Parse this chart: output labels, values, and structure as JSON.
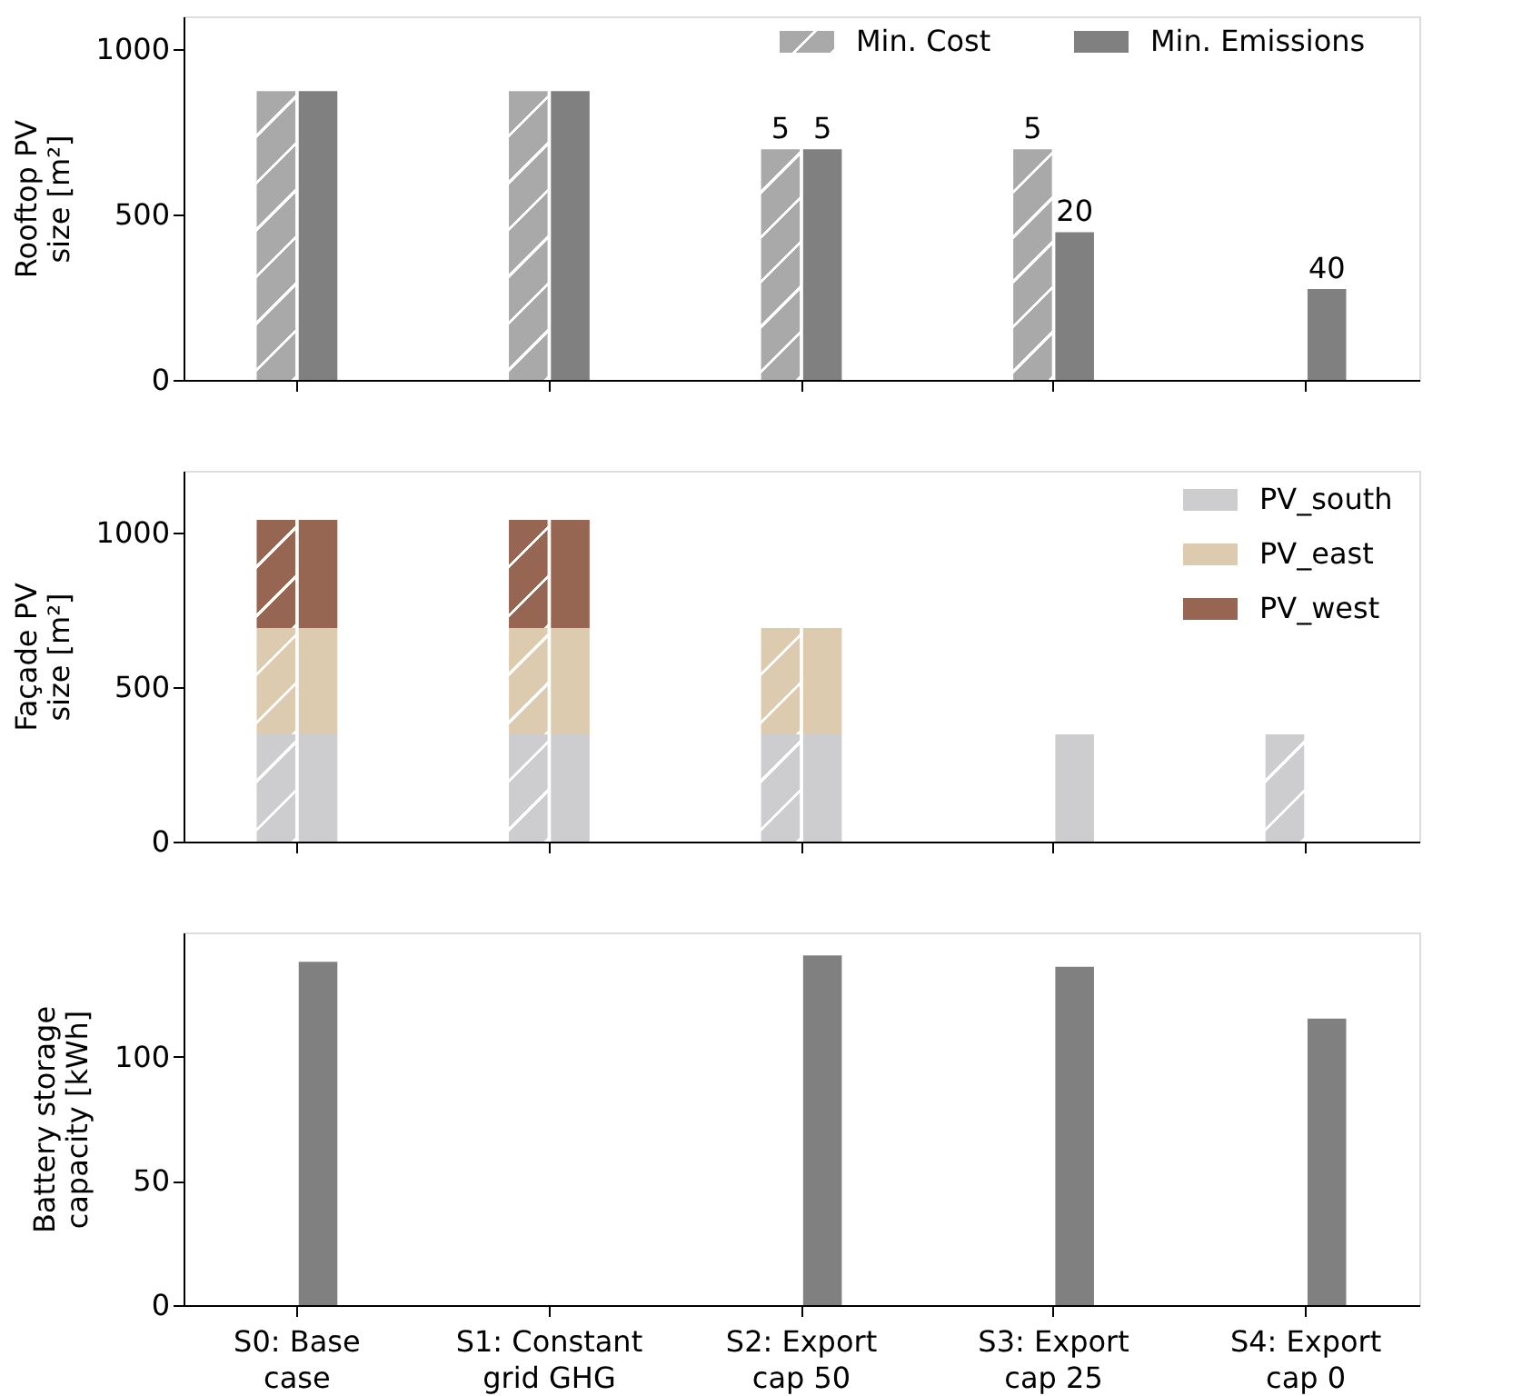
{
  "chart_data": [
    {
      "type": "bar",
      "ylabel": "Rooftop PV size [m²]",
      "categories": [
        "S0: Base case",
        "S1: Constant grid GHG",
        "S2: Export cap 50",
        "S3: Export cap 25",
        "S4: Export cap 0"
      ],
      "ylim": [
        0,
        1100
      ],
      "yticks": [
        0,
        500,
        1000
      ],
      "legend": "top right",
      "tick_labels": "y",
      "series": [
        {
          "name": "Min. Cost",
          "color": "#a9a9a9",
          "values": [
            874,
            874,
            698,
            698,
            null
          ]
        },
        {
          "name": "Min. Emissions",
          "color": "#808080",
          "values": [
            874,
            874,
            698,
            447,
            275
          ]
        }
      ],
      "annotations": [
        {
          "text": "5",
          "x": "S2: Export cap 50",
          "y": 698
        },
        {
          "text": "5",
          "x": "S2: Export cap 50",
          "y": 698
        },
        {
          "text": "5",
          "x": "S3: Export cap 25",
          "y": 698
        },
        {
          "text": "20",
          "x": "S3: Export cap 25",
          "y": 447
        },
        {
          "text": "40",
          "x": "S4: Export cap 0",
          "y": 275
        }
      ]
    },
    {
      "type": "bar",
      "ylabel": "Façade PV size [m²]",
      "categories": [
        "S0: Base case",
        "S1: Constant grid GHG",
        "S2: Export cap 50",
        "S3: Export cap 25",
        "S4: Export cap 0"
      ],
      "ylim": [
        0,
        1200
      ],
      "yticks": [
        0,
        500,
        1000
      ],
      "legend": "top right",
      "tick_labels": "y",
      "series": [
        {
          "name": "PV_south",
          "color": "#cdcdcf",
          "values": [
            347,
            347,
            347,
            null,
            347
          ],
          "base": [
            0,
            0,
            0,
            null,
            0
          ]
        },
        {
          "name": "PV_east",
          "color": "#dccbaf",
          "values": [
            344,
            344,
            344,
            null,
            null
          ],
          "base": [
            347,
            347,
            347,
            null,
            null
          ]
        },
        {
          "name": "PV_west",
          "color": "#976653",
          "values": [
            350,
            350,
            null,
            null,
            null
          ],
          "base": [
            691,
            691,
            null,
            null,
            null
          ]
        },
        {
          "color": "#cdcdcf",
          "values": [
            347,
            347,
            347,
            347,
            null
          ],
          "base": [
            0,
            0,
            0,
            0,
            null
          ]
        },
        {
          "color": "#dccbaf",
          "values": [
            344,
            344,
            344,
            null,
            null
          ],
          "base": [
            347,
            347,
            347,
            null,
            null
          ]
        },
        {
          "color": "#976653",
          "values": [
            350,
            350,
            null,
            null,
            null
          ],
          "base": [
            691,
            691,
            null,
            null,
            null
          ]
        }
      ]
    },
    {
      "type": "bar",
      "ylabel": "Battery storage capacity [kWh]",
      "categories": [
        "S0: Base case",
        "S1: Constant grid GHG",
        "S2: Export cap 50",
        "S3: Export cap 25",
        "S4: Export cap 0"
      ],
      "ylim": [
        0,
        150
      ],
      "yticks": [
        0,
        50,
        100
      ],
      "series": [
        {
          "color": "#a9a9a9",
          "values": [
            0,
            0,
            0,
            0,
            0
          ]
        },
        {
          "color": "#808080",
          "values": [
            138.2,
            0,
            140.8,
            136.2,
            115.3
          ]
        }
      ]
    }
  ]
}
